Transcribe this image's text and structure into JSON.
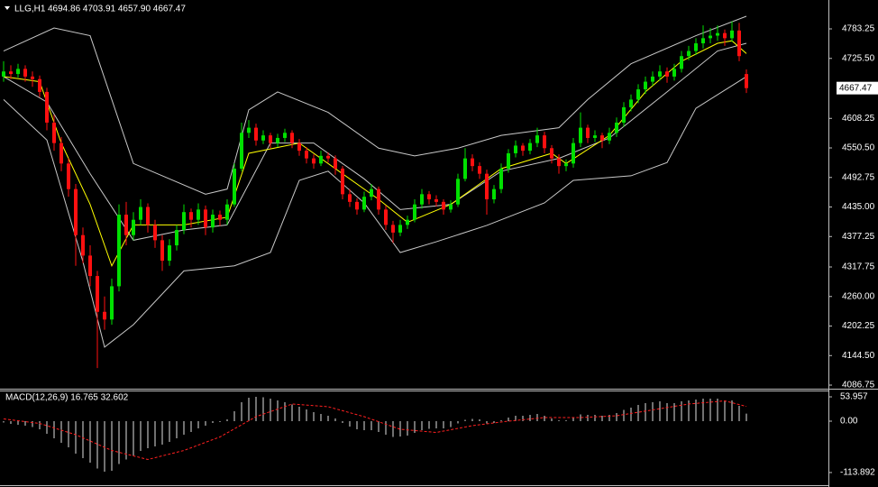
{
  "chart_data": {
    "type": "candlestick",
    "title": "LLG,H1",
    "ohlc_text": "4694.86 4703.91 4657.90 4667.47",
    "bull_color": "#00e000",
    "bear_color": "#ff1010",
    "ylim": [
      4081.5,
      4839.7
    ],
    "yticks": [
      4783.25,
      {
        "value": 4725.5,
        "label": "4725.50"
      },
      {
        "value": 4608.25,
        "label": "4608.25"
      },
      {
        "value": 4550.5,
        "label": "4550.50"
      },
      4492.75,
      {
        "value": 4435,
        "label": "4435.00"
      },
      4377.25,
      4317.75,
      {
        "value": 4260,
        "label": "4260.00"
      },
      4202.25,
      {
        "value": 4144.5,
        "label": "4144.50"
      },
      4086.75
    ],
    "current_price": {
      "value": 4667.47,
      "label": "4667.47"
    },
    "candles": [
      [
        4690,
        4720,
        4680,
        4700
      ],
      [
        4700,
        4712,
        4685,
        4695
      ],
      [
        4695,
        4715,
        4688,
        4705
      ],
      [
        4705,
        4712,
        4680,
        4690
      ],
      [
        4690,
        4700,
        4670,
        4685
      ],
      [
        4685,
        4692,
        4650,
        4660
      ],
      [
        4660,
        4668,
        4585,
        4600
      ],
      [
        4600,
        4615,
        4545,
        4560
      ],
      [
        4560,
        4572,
        4505,
        4520
      ],
      [
        4520,
        4530,
        4455,
        4470
      ],
      [
        4470,
        4480,
        4320,
        4380
      ],
      [
        4380,
        4395,
        4325,
        4340
      ],
      [
        4340,
        4360,
        4280,
        4300
      ],
      [
        4300,
        4310,
        4120,
        4230
      ],
      [
        4230,
        4260,
        4195,
        4215
      ],
      [
        4215,
        4295,
        4205,
        4280
      ],
      [
        4280,
        4440,
        4270,
        4420
      ],
      [
        4420,
        4445,
        4360,
        4380
      ],
      [
        4380,
        4425,
        4370,
        4410
      ],
      [
        4410,
        4450,
        4400,
        4435
      ],
      [
        4435,
        4442,
        4385,
        4400
      ],
      [
        4400,
        4410,
        4355,
        4370
      ],
      [
        4370,
        4380,
        4310,
        4330
      ],
      [
        4330,
        4372,
        4320,
        4360
      ],
      [
        4360,
        4400,
        4350,
        4390
      ],
      [
        4390,
        4440,
        4382,
        4425
      ],
      [
        4425,
        4432,
        4395,
        4410
      ],
      [
        4410,
        4442,
        4400,
        4430
      ],
      [
        4430,
        4438,
        4380,
        4395
      ],
      [
        4395,
        4430,
        4385,
        4420
      ],
      [
        4420,
        4428,
        4398,
        4410
      ],
      [
        4410,
        4450,
        4400,
        4440
      ],
      [
        4440,
        4520,
        4435,
        4510
      ],
      [
        4510,
        4600,
        4505,
        4580
      ],
      [
        4580,
        4605,
        4570,
        4590
      ],
      [
        4590,
        4598,
        4555,
        4565
      ],
      [
        4565,
        4585,
        4558,
        4575
      ],
      [
        4575,
        4580,
        4550,
        4560
      ],
      [
        4560,
        4578,
        4552,
        4570
      ],
      [
        4570,
        4588,
        4562,
        4580
      ],
      [
        4580,
        4585,
        4550,
        4560
      ],
      [
        4560,
        4568,
        4535,
        4545
      ],
      [
        4545,
        4552,
        4520,
        4530
      ],
      [
        4530,
        4538,
        4510,
        4520
      ],
      [
        4520,
        4545,
        4515,
        4535
      ],
      [
        4535,
        4542,
        4522,
        4530
      ],
      [
        4530,
        4536,
        4498,
        4510
      ],
      [
        4510,
        4515,
        4450,
        4460
      ],
      [
        4460,
        4470,
        4435,
        4445
      ],
      [
        4445,
        4452,
        4420,
        4430
      ],
      [
        4430,
        4465,
        4425,
        4455
      ],
      [
        4455,
        4480,
        4448,
        4470
      ],
      [
        4470,
        4475,
        4420,
        4430
      ],
      [
        4430,
        4438,
        4390,
        4400
      ],
      [
        4400,
        4408,
        4365,
        4385
      ],
      [
        4385,
        4410,
        4378,
        4400
      ],
      [
        4400,
        4418,
        4392,
        4410
      ],
      [
        4410,
        4450,
        4405,
        4440
      ],
      [
        4440,
        4470,
        4432,
        4460
      ],
      [
        4460,
        4466,
        4440,
        4450
      ],
      [
        4450,
        4458,
        4436,
        4445
      ],
      [
        4445,
        4450,
        4420,
        4430
      ],
      [
        4430,
        4448,
        4424,
        4440
      ],
      [
        4440,
        4500,
        4435,
        4490
      ],
      [
        4490,
        4550,
        4485,
        4530
      ],
      [
        4530,
        4538,
        4505,
        4515
      ],
      [
        4515,
        4522,
        4490,
        4500
      ],
      [
        4500,
        4508,
        4420,
        4450
      ],
      [
        4450,
        4478,
        4442,
        4470
      ],
      [
        4470,
        4520,
        4462,
        4510
      ],
      [
        4510,
        4548,
        4502,
        4540
      ],
      [
        4540,
        4565,
        4532,
        4555
      ],
      [
        4555,
        4560,
        4535,
        4545
      ],
      [
        4545,
        4568,
        4538,
        4560
      ],
      [
        4560,
        4590,
        4552,
        4575
      ],
      [
        4575,
        4582,
        4540,
        4550
      ],
      [
        4550,
        4556,
        4520,
        4530
      ],
      [
        4530,
        4538,
        4500,
        4515
      ],
      [
        4515,
        4528,
        4505,
        4520
      ],
      [
        4520,
        4570,
        4512,
        4560
      ],
      [
        4560,
        4620,
        4552,
        4590
      ],
      [
        4590,
        4596,
        4560,
        4570
      ],
      [
        4570,
        4585,
        4562,
        4575
      ],
      [
        4575,
        4580,
        4550,
        4565
      ],
      [
        4565,
        4590,
        4558,
        4580
      ],
      [
        4580,
        4610,
        4572,
        4600
      ],
      [
        4600,
        4640,
        4592,
        4630
      ],
      [
        4630,
        4655,
        4622,
        4645
      ],
      [
        4645,
        4675,
        4638,
        4665
      ],
      [
        4665,
        4690,
        4656,
        4680
      ],
      [
        4680,
        4700,
        4672,
        4690
      ],
      [
        4690,
        4712,
        4682,
        4700
      ],
      [
        4700,
        4708,
        4678,
        4690
      ],
      [
        4690,
        4715,
        4682,
        4705
      ],
      [
        4705,
        4740,
        4698,
        4730
      ],
      [
        4730,
        4750,
        4722,
        4740
      ],
      [
        4740,
        4765,
        4732,
        4755
      ],
      [
        4755,
        4790,
        4745,
        4765
      ],
      [
        4765,
        4785,
        4755,
        4770
      ],
      [
        4770,
        4790,
        4760,
        4775
      ],
      [
        4775,
        4782,
        4750,
        4765
      ],
      [
        4765,
        4798,
        4758,
        4780
      ],
      [
        4780,
        4795,
        4720,
        4730
      ],
      [
        4694.86,
        4703.91,
        4657.9,
        4667.47
      ]
    ],
    "overlays": [
      {
        "color": "#c8c8c8",
        "x": [
          0,
          7,
          12,
          18,
          28,
          31,
          34,
          38,
          45,
          52,
          57,
          63,
          69,
          77,
          81,
          87,
          96,
          103
        ],
        "values": [
          4740,
          4785,
          4770,
          4520,
          4460,
          4470,
          4625,
          4660,
          4620,
          4550,
          4535,
          4550,
          4575,
          4590,
          4645,
          4715,
          4770,
          4808
        ]
      },
      {
        "color": "#c8c8c8",
        "x": [
          0,
          6,
          12,
          18,
          25,
          31,
          37,
          43,
          50,
          55,
          62,
          69,
          77,
          84,
          92,
          99,
          103
        ],
        "values": [
          4690,
          4640,
          4500,
          4370,
          4390,
          4400,
          4560,
          4560,
          4490,
          4430,
          4440,
          4505,
          4530,
          4570,
          4660,
          4740,
          4755
        ]
      },
      {
        "color": "#c8c8c8",
        "x": [
          0,
          6,
          11,
          14,
          18,
          25,
          32,
          37,
          41,
          45,
          50,
          55,
          60,
          67,
          75,
          79,
          87,
          92,
          96,
          103
        ],
        "values": [
          4645,
          4566,
          4328,
          4161,
          4205,
          4310,
          4320,
          4346,
          4487,
          4505,
          4443,
          4346,
          4367,
          4399,
          4443,
          4487,
          4496,
          4522,
          4628,
          4690
        ]
      },
      {
        "color": "#ffff00",
        "x": [
          0,
          5,
          8,
          12,
          15,
          18,
          25,
          31,
          34,
          41,
          47,
          52,
          56,
          62,
          66,
          69,
          76,
          78,
          84,
          89,
          94,
          99,
          101,
          103
        ],
        "values": [
          4690,
          4680,
          4560,
          4440,
          4320,
          4400,
          4400,
          4415,
          4540,
          4560,
          4500,
          4450,
          4405,
          4440,
          4480,
          4510,
          4540,
          4520,
          4575,
          4660,
          4720,
          4755,
          4760,
          4735
        ]
      }
    ],
    "macd": {
      "label": "MACD(12,26,9) 16.765 32.602",
      "ylim": [
        -142,
        66
      ],
      "yticks": [
        53.957,
        {
          "value": 0,
          "label": "0.00"
        },
        -113.892
      ],
      "hist_color": "#e0e0e0",
      "histogram": [
        -3,
        -6,
        -8,
        -10,
        -13,
        -18,
        -28,
        -38,
        -48,
        -58,
        -72,
        -82,
        -92,
        -105,
        -112,
        -110,
        -95,
        -85,
        -76,
        -66,
        -60,
        -56,
        -52,
        -46,
        -38,
        -30,
        -24,
        -16,
        -10,
        -4,
        -2,
        4,
        22,
        42,
        52,
        54,
        53,
        50,
        46,
        42,
        37,
        32,
        26,
        20,
        16,
        12,
        6,
        -4,
        -12,
        -18,
        -20,
        -20,
        -24,
        -30,
        -35,
        -34,
        -32,
        -26,
        -20,
        -17,
        -16,
        -16,
        -13,
        -5,
        3,
        5,
        4,
        -5,
        -4,
        2,
        8,
        12,
        12,
        14,
        16,
        12,
        6,
        2,
        2,
        8,
        15,
        14,
        14,
        12,
        14,
        18,
        25,
        30,
        36,
        40,
        42,
        44,
        40,
        40,
        44,
        46,
        48,
        50,
        50,
        50,
        46,
        46,
        34,
        16.765
      ],
      "signal_color": "#ff2020",
      "signal": {
        "x": [
          0,
          5,
          10,
          15,
          20,
          25,
          30,
          35,
          40,
          45,
          50,
          55,
          60,
          65,
          70,
          75,
          80,
          85,
          90,
          95,
          100,
          103
        ],
        "values": [
          5,
          -5,
          -30,
          -65,
          -85,
          -65,
          -35,
          10,
          38,
          32,
          10,
          -18,
          -25,
          -10,
          0,
          8,
          8,
          12,
          25,
          38,
          45,
          32.602
        ]
      }
    }
  }
}
